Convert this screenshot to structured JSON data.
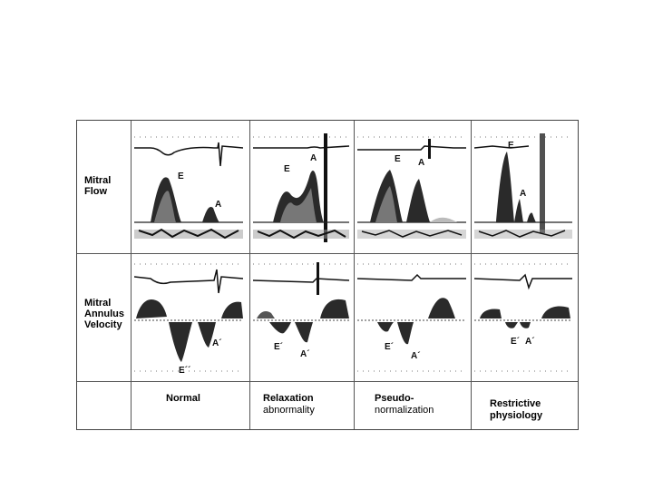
{
  "rows": [
    {
      "lines": [
        "Mitral",
        "Flow"
      ]
    },
    {
      "lines": [
        "Mitral",
        "Annulus",
        "Velocity"
      ]
    }
  ],
  "columns": [
    {
      "line1": "Normal",
      "line2": ""
    },
    {
      "line1": "Relaxation",
      "line2": "abnormality"
    },
    {
      "line1": "Pseudo-",
      "line2": "normalization"
    },
    {
      "line1": "Restrictive",
      "line2": "physiology"
    }
  ],
  "wave_labels": {
    "E": "E",
    "A": "A",
    "E_prime": "E´",
    "A_prime": "A´",
    "E_double": "E´´"
  }
}
